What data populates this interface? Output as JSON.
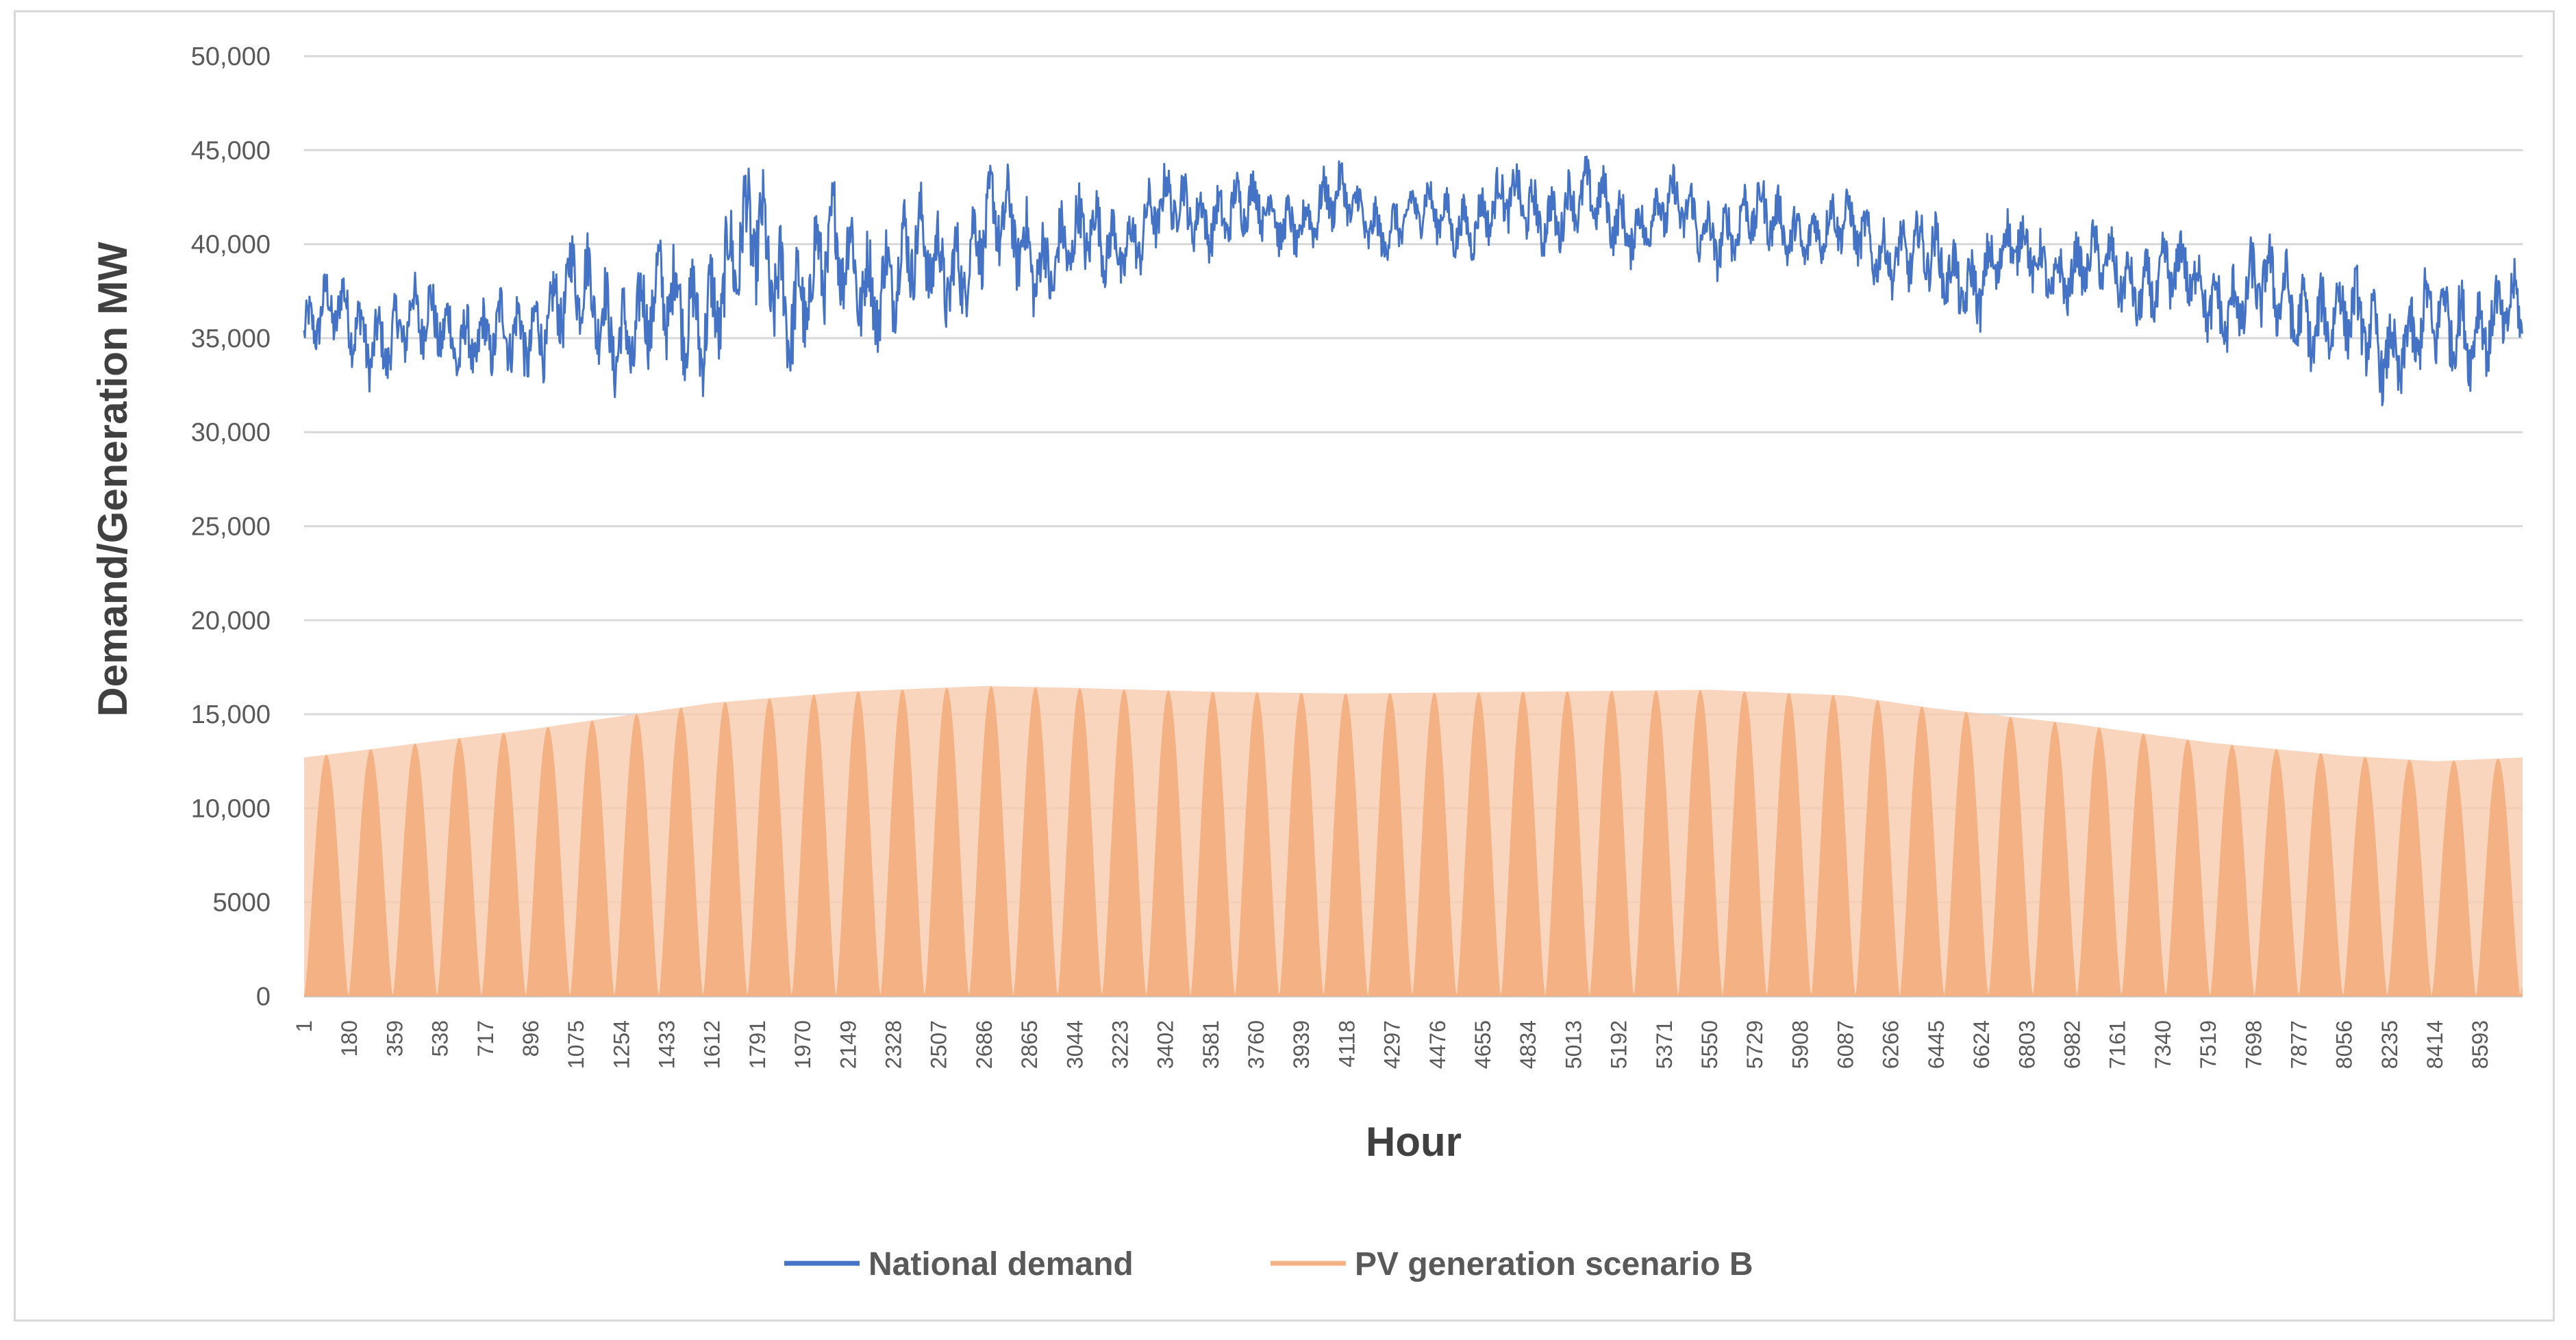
{
  "chart_data": {
    "type": "line+area",
    "title": "",
    "xlabel": "Hour",
    "ylabel": "Demand/Generation MW",
    "ylim": [
      0,
      50000
    ],
    "xlim": [
      1,
      8760
    ],
    "grid": "horizontal",
    "legend_position": "bottom",
    "y_ticks": [
      {
        "value": 0,
        "label": "0"
      },
      {
        "value": 5000,
        "label": "5000"
      },
      {
        "value": 10000,
        "label": "10,000"
      },
      {
        "value": 15000,
        "label": "15,000"
      },
      {
        "value": 20000,
        "label": "20,000"
      },
      {
        "value": 25000,
        "label": "25,000"
      },
      {
        "value": 30000,
        "label": "30,000"
      },
      {
        "value": 35000,
        "label": "35,000"
      },
      {
        "value": 40000,
        "label": "40,000"
      },
      {
        "value": 45000,
        "label": "45,000"
      },
      {
        "value": 50000,
        "label": "50,000"
      }
    ],
    "x_ticks": [
      "1",
      "180",
      "359",
      "538",
      "717",
      "896",
      "1075",
      "1254",
      "1433",
      "1612",
      "1791",
      "1970",
      "2149",
      "2328",
      "2507",
      "2686",
      "2865",
      "3044",
      "3223",
      "3402",
      "3581",
      "3760",
      "3939",
      "4118",
      "4297",
      "4476",
      "4655",
      "4834",
      "5013",
      "5192",
      "5371",
      "5550",
      "5729",
      "5908",
      "6087",
      "6266",
      "6445",
      "6624",
      "6803",
      "6982",
      "7161",
      "7340",
      "7519",
      "7698",
      "7877",
      "8056",
      "8235",
      "8414",
      "8593"
    ],
    "series": [
      {
        "name": "National demand",
        "type": "line",
        "color": "#4472c4",
        "hours": [
          1,
          180,
          359,
          538,
          717,
          896,
          1075,
          1254,
          1433,
          1612,
          1791,
          1970,
          2149,
          2328,
          2507,
          2686,
          2865,
          3044,
          3223,
          3402,
          3581,
          3760,
          3939,
          4118,
          4297,
          4476,
          4655,
          4834,
          5013,
          5192,
          5371,
          5550,
          5729,
          5908,
          6087,
          6266,
          6445,
          6624,
          6803,
          6982,
          7161,
          7340,
          7519,
          7698,
          7877,
          8056,
          8235,
          8414,
          8593,
          8760
        ],
        "baseline": [
          35000,
          36500,
          34500,
          36500,
          34000,
          36000,
          37000,
          36000,
          36000,
          37500,
          39500,
          37500,
          39000,
          38500,
          39000,
          40500,
          40000,
          39500,
          40500,
          41500,
          42000,
          41500,
          41500,
          42000,
          41000,
          41500,
          41500,
          42000,
          42000,
          41500,
          41500,
          41000,
          41000,
          41000,
          40500,
          40000,
          38500,
          38500,
          39500,
          38500,
          38500,
          38000,
          37500,
          37000,
          37000,
          35500,
          35000,
          35000,
          36500,
          35500
        ],
        "amplitude": [
          2200,
          2800,
          2800,
          2800,
          2800,
          3000,
          3500,
          3800,
          4000,
          4500,
          4800,
          4500,
          4200,
          3800,
          3800,
          3500,
          3500,
          3200,
          2800,
          2500,
          2400,
          2200,
          2200,
          2200,
          2000,
          2000,
          2200,
          2400,
          2400,
          2400,
          2400,
          2400,
          2400,
          2200,
          2200,
          2400,
          2800,
          2800,
          2400,
          2400,
          2400,
          2800,
          2800,
          3200,
          3200,
          3000,
          3200,
          3500,
          3200,
          2800
        ]
      },
      {
        "name": "PV generation scenario B",
        "type": "area",
        "color": "#f4b183",
        "fill_color": "#f8cbad",
        "hours": [
          1,
          896,
          1612,
          2149,
          2686,
          3044,
          3581,
          4118,
          4834,
          5550,
          6087,
          6445,
          6982,
          7519,
          8056,
          8414,
          8760
        ],
        "daily_peak": [
          12700,
          14200,
          15600,
          16200,
          16500,
          16400,
          16200,
          16100,
          16200,
          16300,
          16000,
          15300,
          14500,
          13500,
          12800,
          12500,
          12700
        ]
      }
    ]
  }
}
